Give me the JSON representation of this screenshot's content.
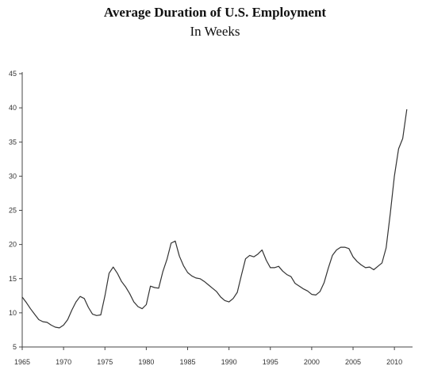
{
  "chart_data": {
    "type": "line",
    "title": "Average Duration of U.S. Employment",
    "subtitle": "In Weeks",
    "xlabel": "",
    "ylabel": "",
    "xlim": [
      1965,
      2012
    ],
    "ylim": [
      5,
      45
    ],
    "x_ticks": [
      1965,
      1970,
      1975,
      1980,
      1985,
      1990,
      1995,
      2000,
      2005,
      2010
    ],
    "y_ticks": [
      5,
      10,
      15,
      20,
      25,
      30,
      35,
      40,
      45
    ],
    "grid": false,
    "legend": "none",
    "line_color": "#333333",
    "series": [
      {
        "x": [
          1965.0,
          1965.5,
          1966.0,
          1966.5,
          1967.0,
          1967.5,
          1968.0,
          1968.5,
          1969.0,
          1969.5,
          1970.0,
          1970.5,
          1971.0,
          1971.5,
          1972.0,
          1972.5,
          1973.0,
          1973.5,
          1974.0,
          1974.5,
          1975.0,
          1975.5,
          1976.0,
          1976.5,
          1977.0,
          1977.5,
          1978.0,
          1978.5,
          1979.0,
          1979.5,
          1980.0,
          1980.5,
          1981.0,
          1981.5,
          1982.0,
          1982.5,
          1983.0,
          1983.5,
          1984.0,
          1984.5,
          1985.0,
          1985.5,
          1986.0,
          1986.5,
          1987.0,
          1987.5,
          1988.0,
          1988.5,
          1989.0,
          1989.5,
          1990.0,
          1990.5,
          1991.0,
          1991.5,
          1992.0,
          1992.5,
          1993.0,
          1993.5,
          1994.0,
          1994.5,
          1995.0,
          1995.5,
          1996.0,
          1996.5,
          1997.0,
          1997.5,
          1998.0,
          1998.5,
          1999.0,
          1999.5,
          2000.0,
          2000.5,
          2001.0,
          2001.5,
          2002.0,
          2002.5,
          2003.0,
          2003.5,
          2004.0,
          2004.5,
          2005.0,
          2005.5,
          2006.0,
          2006.5,
          2007.0,
          2007.5,
          2008.0,
          2008.5,
          2009.0,
          2009.5,
          2010.0,
          2010.5,
          2011.0,
          2011.5
        ],
        "values": [
          12.3,
          11.5,
          10.6,
          9.8,
          9.0,
          8.7,
          8.6,
          8.2,
          7.9,
          7.8,
          8.2,
          9.0,
          10.4,
          11.6,
          12.4,
          12.1,
          10.8,
          9.8,
          9.6,
          9.7,
          12.5,
          15.8,
          16.7,
          15.8,
          14.6,
          13.8,
          12.8,
          11.6,
          10.9,
          10.6,
          11.2,
          13.9,
          13.7,
          13.6,
          16.0,
          17.8,
          20.2,
          20.5,
          18.3,
          16.9,
          15.9,
          15.4,
          15.1,
          15.0,
          14.6,
          14.1,
          13.6,
          13.1,
          12.3,
          11.8,
          11.6,
          12.1,
          13.0,
          15.5,
          17.9,
          18.4,
          18.2,
          18.6,
          19.2,
          17.7,
          16.6,
          16.6,
          16.8,
          16.1,
          15.6,
          15.3,
          14.3,
          13.9,
          13.5,
          13.2,
          12.7,
          12.6,
          13.1,
          14.4,
          16.5,
          18.4,
          19.2,
          19.6,
          19.6,
          19.4,
          18.2,
          17.5,
          17.0,
          16.6,
          16.7,
          16.3,
          16.8,
          17.3,
          19.5,
          24.5,
          30.0,
          34.0,
          35.5,
          39.8
        ]
      }
    ]
  }
}
